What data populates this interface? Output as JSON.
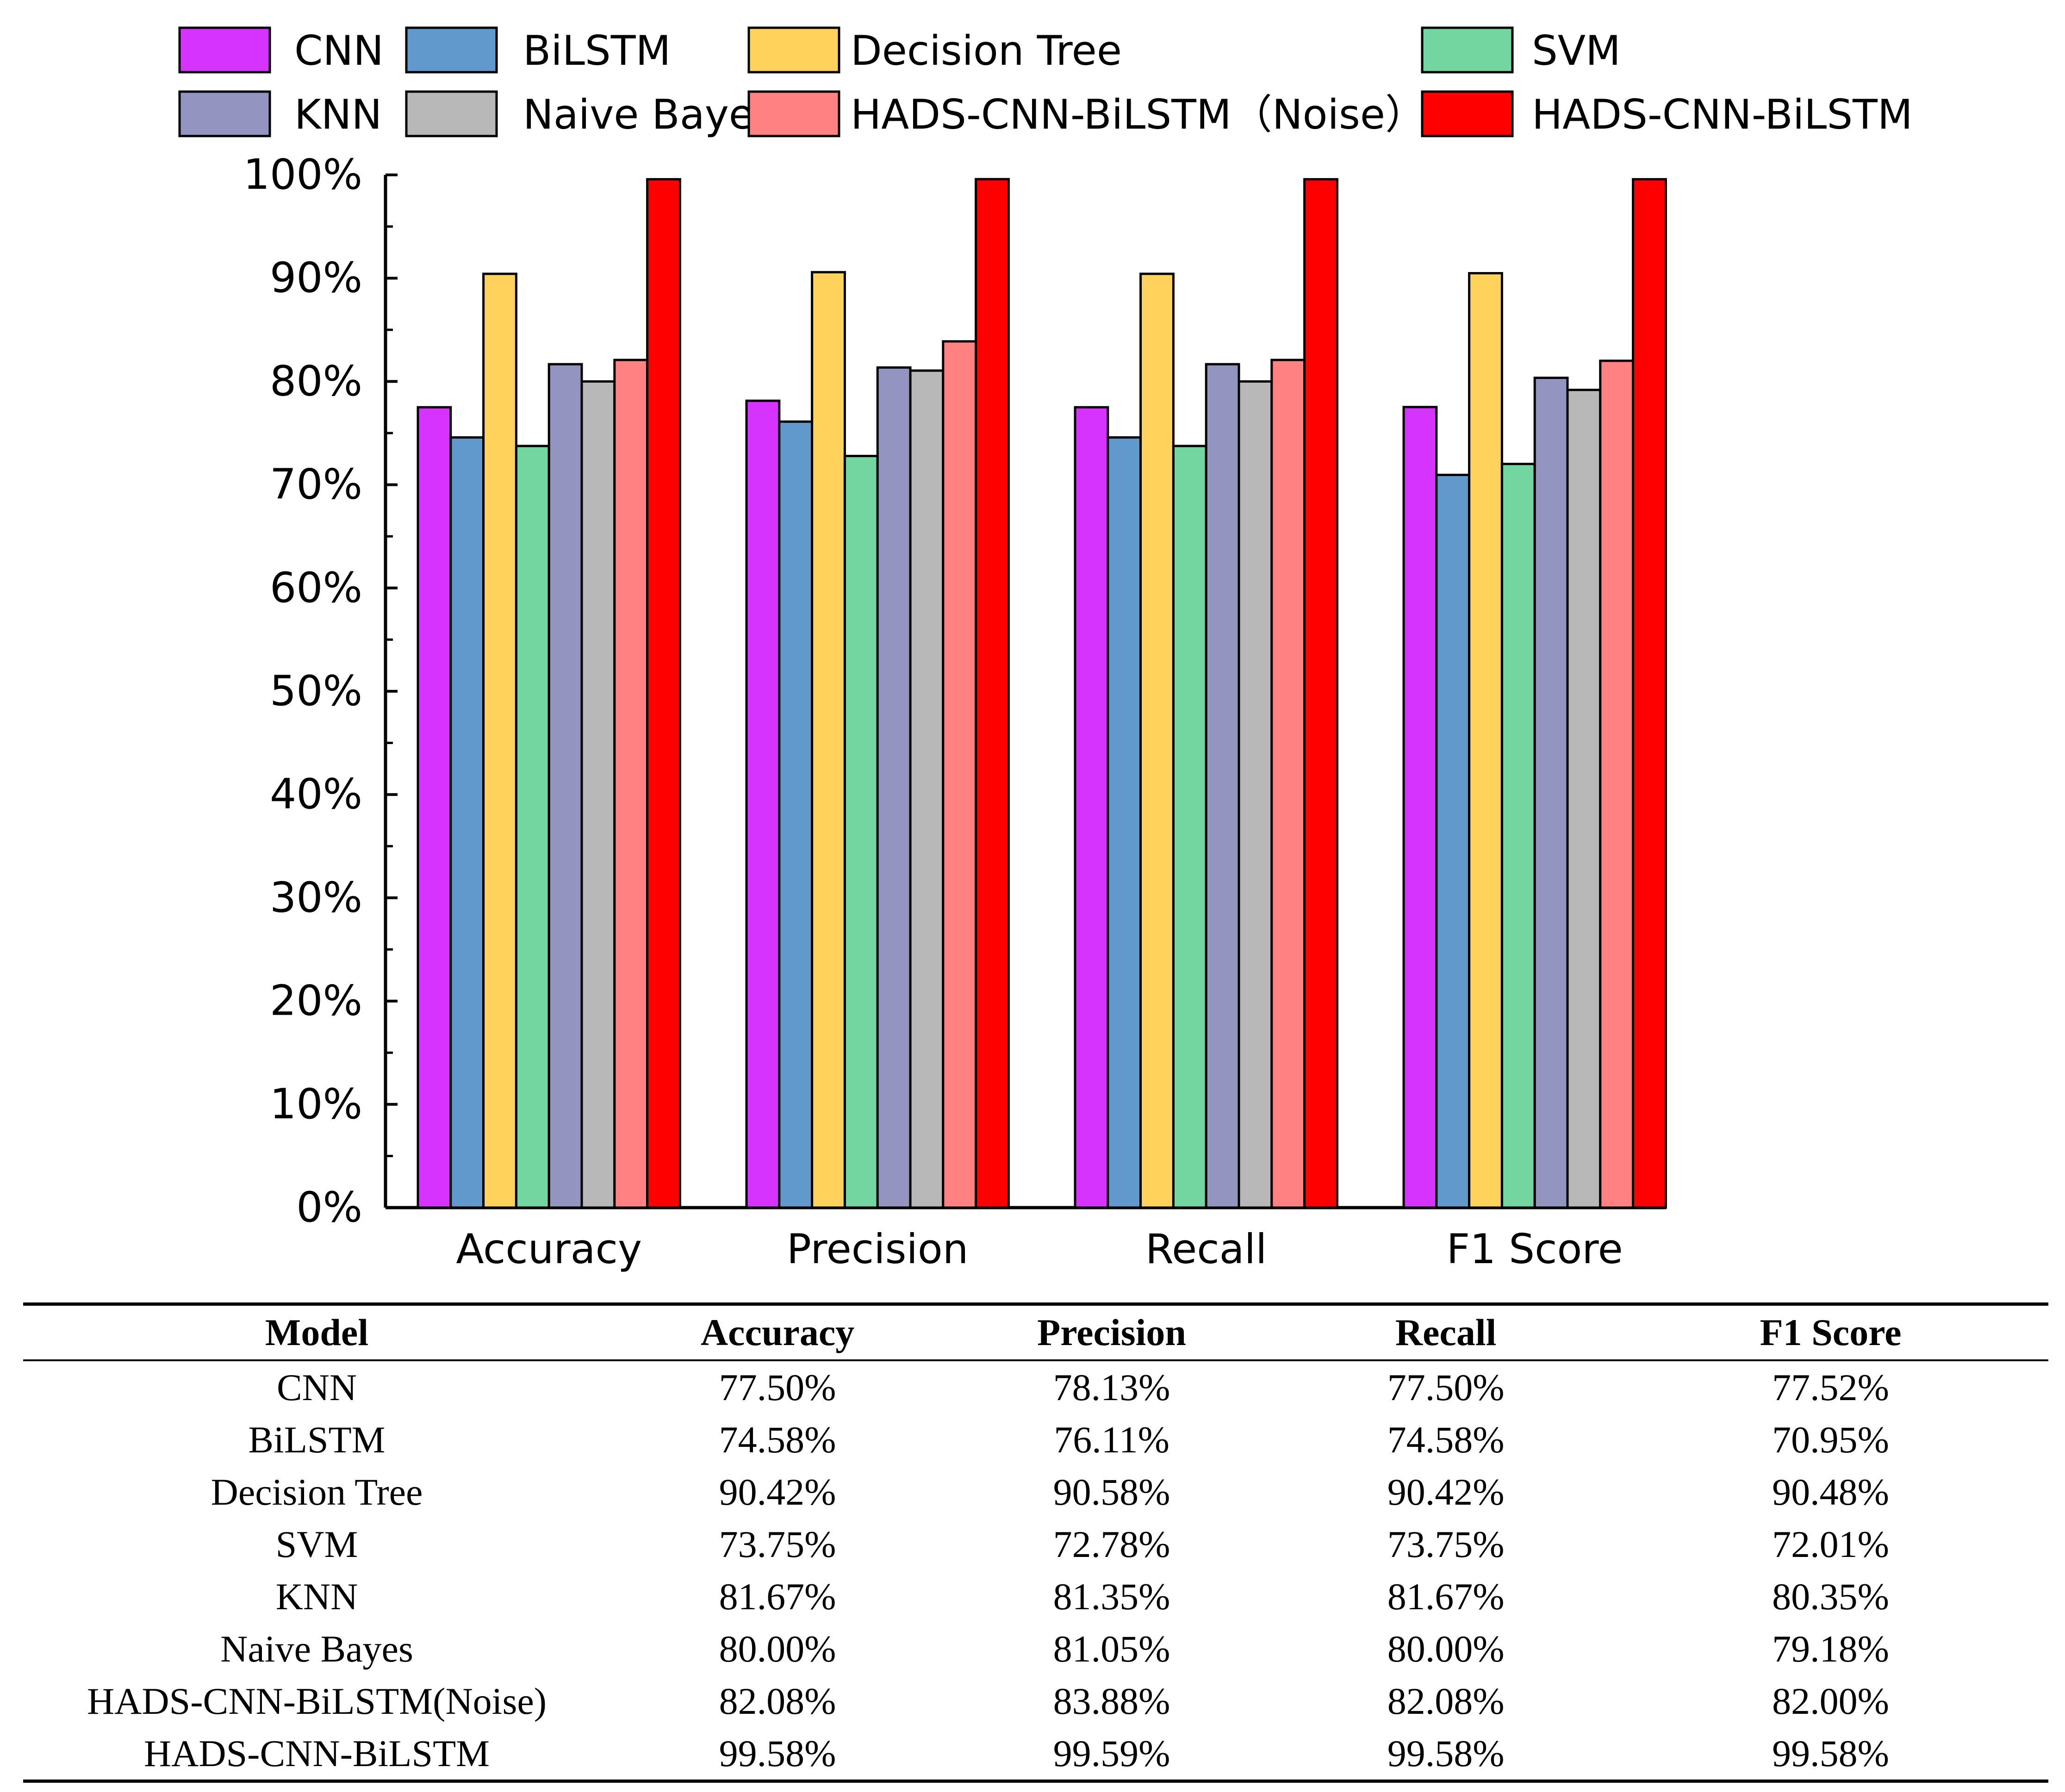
{
  "colors": {
    "CNN": "#d633ff",
    "BiLSTM": "#6199cd",
    "Decision Tree": "#ffd35b",
    "SVM": "#73d6a1",
    "KNN": "#9494c1",
    "Naive Bayes": "#b8b8b8",
    "HADS-CNN-BiLSTM（Noise）": "#ff8181",
    "HADS-CNN-BiLSTM": "#ff0000"
  },
  "chart_data": {
    "type": "bar",
    "title": "",
    "xlabel": "",
    "ylabel": "",
    "ylim": [
      0,
      100
    ],
    "yticks": [
      "0%",
      "10%",
      "20%",
      "30%",
      "40%",
      "50%",
      "60%",
      "70%",
      "80%",
      "90%",
      "100%"
    ],
    "legend_position": "top",
    "categories": [
      "Accuracy",
      "Precision",
      "Recall",
      "F1 Score"
    ],
    "series": [
      {
        "name": "CNN",
        "values": [
          77.5,
          78.13,
          77.5,
          77.52
        ]
      },
      {
        "name": "BiLSTM",
        "values": [
          74.58,
          76.11,
          74.58,
          70.95
        ]
      },
      {
        "name": "Decision Tree",
        "values": [
          90.42,
          90.58,
          90.42,
          90.48
        ]
      },
      {
        "name": "SVM",
        "values": [
          73.75,
          72.78,
          73.75,
          72.01
        ]
      },
      {
        "name": "KNN",
        "values": [
          81.67,
          81.35,
          81.67,
          80.35
        ]
      },
      {
        "name": "Naive Bayes",
        "values": [
          80.0,
          81.05,
          80.0,
          79.18
        ]
      },
      {
        "name": "HADS-CNN-BiLSTM（Noise）",
        "values": [
          82.08,
          83.88,
          82.08,
          82.0
        ]
      },
      {
        "name": "HADS-CNN-BiLSTM",
        "values": [
          99.58,
          99.59,
          99.58,
          99.58
        ]
      }
    ]
  },
  "table": {
    "headers": [
      "Model",
      "Accuracy",
      "Precision",
      "Recall",
      "F1 Score"
    ],
    "rows": [
      [
        "CNN",
        "77.50%",
        "78.13%",
        "77.50%",
        "77.52%"
      ],
      [
        "BiLSTM",
        "74.58%",
        "76.11%",
        "74.58%",
        "70.95%"
      ],
      [
        "Decision Tree",
        "90.42%",
        "90.58%",
        "90.42%",
        "90.48%"
      ],
      [
        "SVM",
        "73.75%",
        "72.78%",
        "73.75%",
        "72.01%"
      ],
      [
        "KNN",
        "81.67%",
        "81.35%",
        "81.67%",
        "80.35%"
      ],
      [
        "Naive Bayes",
        "80.00%",
        "81.05%",
        "80.00%",
        "79.18%"
      ],
      [
        "HADS-CNN-BiLSTM(Noise)",
        "82.08%",
        "83.88%",
        "82.08%",
        "82.00%"
      ],
      [
        "HADS-CNN-BiLSTM",
        "99.58%",
        "99.59%",
        "99.58%",
        "99.58%"
      ]
    ]
  }
}
